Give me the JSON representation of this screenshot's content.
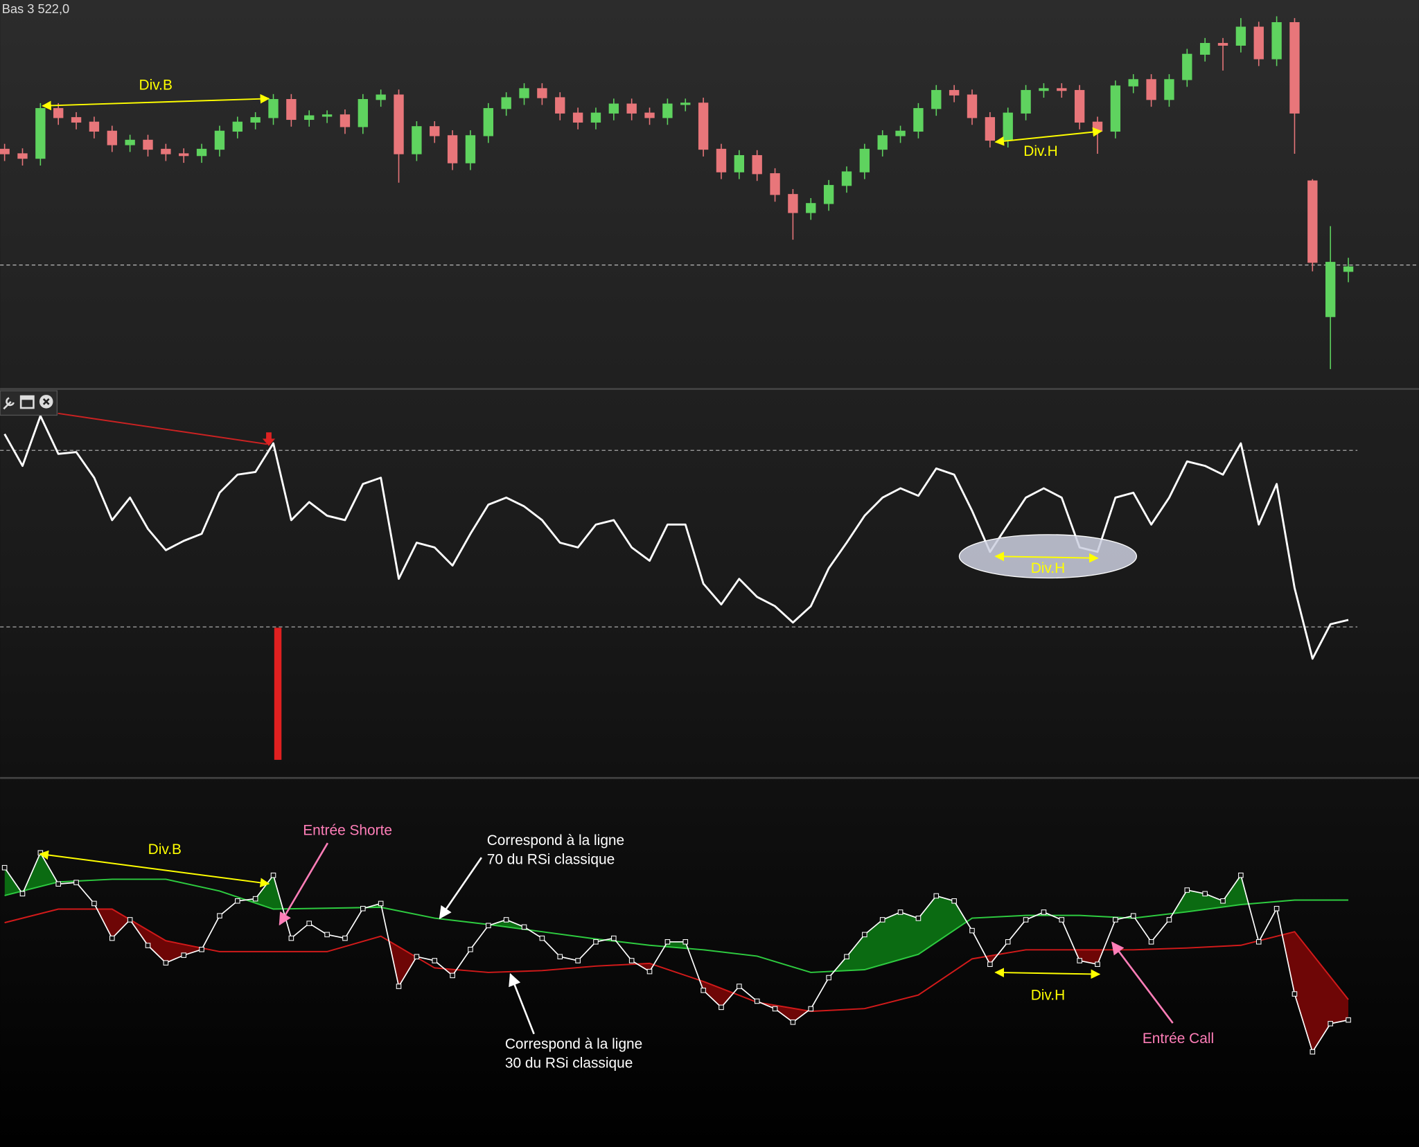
{
  "chart_data": [
    {
      "type": "candlestick",
      "open": [
        265,
        260,
        255,
        310,
        300,
        295,
        285,
        270,
        275,
        265,
        260,
        258,
        265,
        285,
        295,
        300,
        320,
        298,
        302,
        303,
        290,
        320,
        325,
        260,
        290,
        280,
        250,
        280,
        310,
        322,
        332,
        322,
        305,
        295,
        305,
        315,
        305,
        300,
        315,
        316,
        265,
        240,
        258,
        238,
        215,
        195,
        205,
        225,
        240,
        265,
        280,
        285,
        310,
        330,
        325,
        300,
        275,
        305,
        330,
        332,
        330,
        295,
        285,
        335,
        342,
        320,
        342,
        370,
        382,
        380,
        400,
        365,
        405,
        230,
        80,
        130
      ],
      "high": [
        271,
        266,
        316,
        316,
        306,
        301,
        291,
        281,
        281,
        271,
        266,
        271,
        291,
        301,
        306,
        326,
        326,
        308,
        308,
        309,
        326,
        331,
        331,
        296,
        296,
        286,
        286,
        316,
        328,
        338,
        338,
        328,
        311,
        311,
        321,
        321,
        311,
        321,
        321,
        322,
        271,
        264,
        264,
        244,
        221,
        211,
        231,
        246,
        271,
        286,
        291,
        316,
        336,
        336,
        331,
        306,
        311,
        336,
        338,
        338,
        336,
        301,
        341,
        348,
        348,
        348,
        376,
        388,
        388,
        410,
        406,
        412,
        410,
        232,
        180,
        145
      ],
      "low": [
        252,
        247,
        247,
        292,
        287,
        277,
        262,
        262,
        257,
        252,
        250,
        250,
        257,
        277,
        287,
        292,
        290,
        290,
        294,
        282,
        282,
        312,
        228,
        252,
        272,
        242,
        242,
        272,
        302,
        314,
        314,
        297,
        287,
        287,
        297,
        297,
        292,
        292,
        307,
        257,
        232,
        232,
        230,
        207,
        165,
        187,
        197,
        217,
        232,
        257,
        272,
        277,
        302,
        317,
        292,
        267,
        267,
        297,
        322,
        322,
        287,
        260,
        277,
        327,
        312,
        312,
        334,
        362,
        352,
        372,
        357,
        357,
        260,
        130,
        22,
        118
      ],
      "close": [
        260,
        255,
        310,
        300,
        295,
        285,
        270,
        275,
        265,
        260,
        258,
        265,
        285,
        295,
        300,
        320,
        298,
        302,
        303,
        290,
        320,
        325,
        260,
        290,
        280,
        250,
        280,
        310,
        322,
        332,
        322,
        305,
        295,
        305,
        315,
        305,
        300,
        315,
        316,
        265,
        240,
        258,
        238,
        215,
        195,
        205,
        225,
        240,
        265,
        280,
        285,
        310,
        330,
        325,
        300,
        275,
        305,
        330,
        332,
        330,
        295,
        285,
        335,
        342,
        320,
        342,
        370,
        382,
        380,
        400,
        365,
        405,
        305,
        140,
        140,
        135
      ],
      "up_color": "#5fd35f",
      "down_color": "#e8767a",
      "ylim": [
        0,
        430
      ],
      "reference_line": {
        "value": 137,
        "label": "Bas 3 522,0"
      },
      "annotations": [
        "Div.B",
        "Div.H"
      ]
    },
    {
      "type": "line",
      "values": [
        73.7,
        66.5,
        77.8,
        69.2,
        69.6,
        63.8,
        54.2,
        59.3,
        52.2,
        47.4,
        49.5,
        51.1,
        60.4,
        64.5,
        65.1,
        71.6,
        54.2,
        58.3,
        55.2,
        54.2,
        62.4,
        63.8,
        40.9,
        49.1,
        48.0,
        43.9,
        51.1,
        57.7,
        59.3,
        57.3,
        54.2,
        49.1,
        48.0,
        53.2,
        54.2,
        48.0,
        45.0,
        53.2,
        53.2,
        39.8,
        35.1,
        40.9,
        36.8,
        34.7,
        31.0,
        34.7,
        43.3,
        49.1,
        55.2,
        59.3,
        61.4,
        59.7,
        65.9,
        64.5,
        56.3,
        47.0,
        53.2,
        59.3,
        61.4,
        59.3,
        48.0,
        47.0,
        59.3,
        60.4,
        53.2,
        59.3,
        67.5,
        66.5,
        64.5,
        71.6,
        53.2,
        62.4,
        38.8,
        22.8,
        30.6,
        31.6
      ],
      "color": "#ffffff",
      "ylim": [
        -3.8,
        83.5
      ],
      "levels": [
        30,
        70
      ],
      "annotations": [
        "Div.H"
      ]
    },
    {
      "type": "band",
      "values": [
        73.7,
        66.5,
        77.8,
        69.2,
        69.6,
        63.8,
        54.2,
        59.3,
        52.2,
        47.4,
        49.5,
        51.1,
        60.4,
        64.5,
        65.1,
        71.6,
        54.2,
        58.3,
        55.2,
        54.2,
        62.4,
        63.8,
        40.9,
        49.1,
        48.0,
        43.9,
        51.1,
        57.7,
        59.3,
        57.3,
        54.2,
        49.1,
        48.0,
        53.2,
        54.2,
        48.0,
        45.0,
        53.2,
        53.2,
        39.8,
        35.1,
        40.9,
        36.8,
        34.7,
        31.0,
        34.7,
        43.3,
        49.1,
        55.2,
        59.3,
        61.4,
        59.7,
        65.9,
        64.5,
        56.3,
        47.0,
        53.2,
        59.3,
        61.4,
        59.3,
        48.0,
        47.0,
        59.3,
        60.4,
        53.2,
        59.3,
        67.5,
        66.5,
        64.5,
        71.6,
        53.2,
        62.4,
        38.8,
        22.8,
        30.6,
        31.6
      ],
      "color": "#ffffff",
      "upper": {
        "x": [
          0,
          3,
          6,
          9,
          12,
          15,
          18,
          21,
          24,
          27,
          30,
          33,
          36,
          39,
          42,
          45,
          48,
          51,
          54,
          57,
          60,
          63,
          66,
          69,
          72,
          75
        ],
        "values": [
          66,
          69.75,
          70.5,
          70.5,
          67.25,
          62.25,
          62.5,
          62.75,
          59.75,
          58,
          56,
          54,
          52.25,
          51,
          49.25,
          44.75,
          45.5,
          49.75,
          59.75,
          60.5,
          60.5,
          59.75,
          61.5,
          63.5,
          64.75,
          64.75
        ],
        "color": "#2ecc40",
        "fill": "#0b6b12"
      },
      "lower": {
        "x": [
          0,
          3,
          6,
          9,
          12,
          15,
          18,
          21,
          24,
          27,
          30,
          33,
          36,
          39,
          42,
          45,
          48,
          51,
          54,
          57,
          60,
          63,
          66,
          69,
          72,
          75
        ],
        "values": [
          58.5,
          62.25,
          62.25,
          53.5,
          50.5,
          50.5,
          50.5,
          54.75,
          46,
          44.75,
          45.25,
          46.5,
          47.25,
          42.25,
          36.5,
          34,
          34.75,
          38.5,
          48.5,
          51,
          51,
          51,
          51.5,
          52.25,
          56,
          37.25
        ],
        "color": "#d21a1a",
        "fill": "#6e0606"
      },
      "ylim": [
        -3.5,
        98
      ],
      "annotations": [
        "Div.B",
        "Entrée Shorte",
        [
          "Correspond à la ligne",
          "70 du RSi classique"
        ],
        [
          "Correspond à la ligne",
          "30 du RSi classique"
        ],
        "Div.H",
        "Entrée Call"
      ]
    }
  ]
}
